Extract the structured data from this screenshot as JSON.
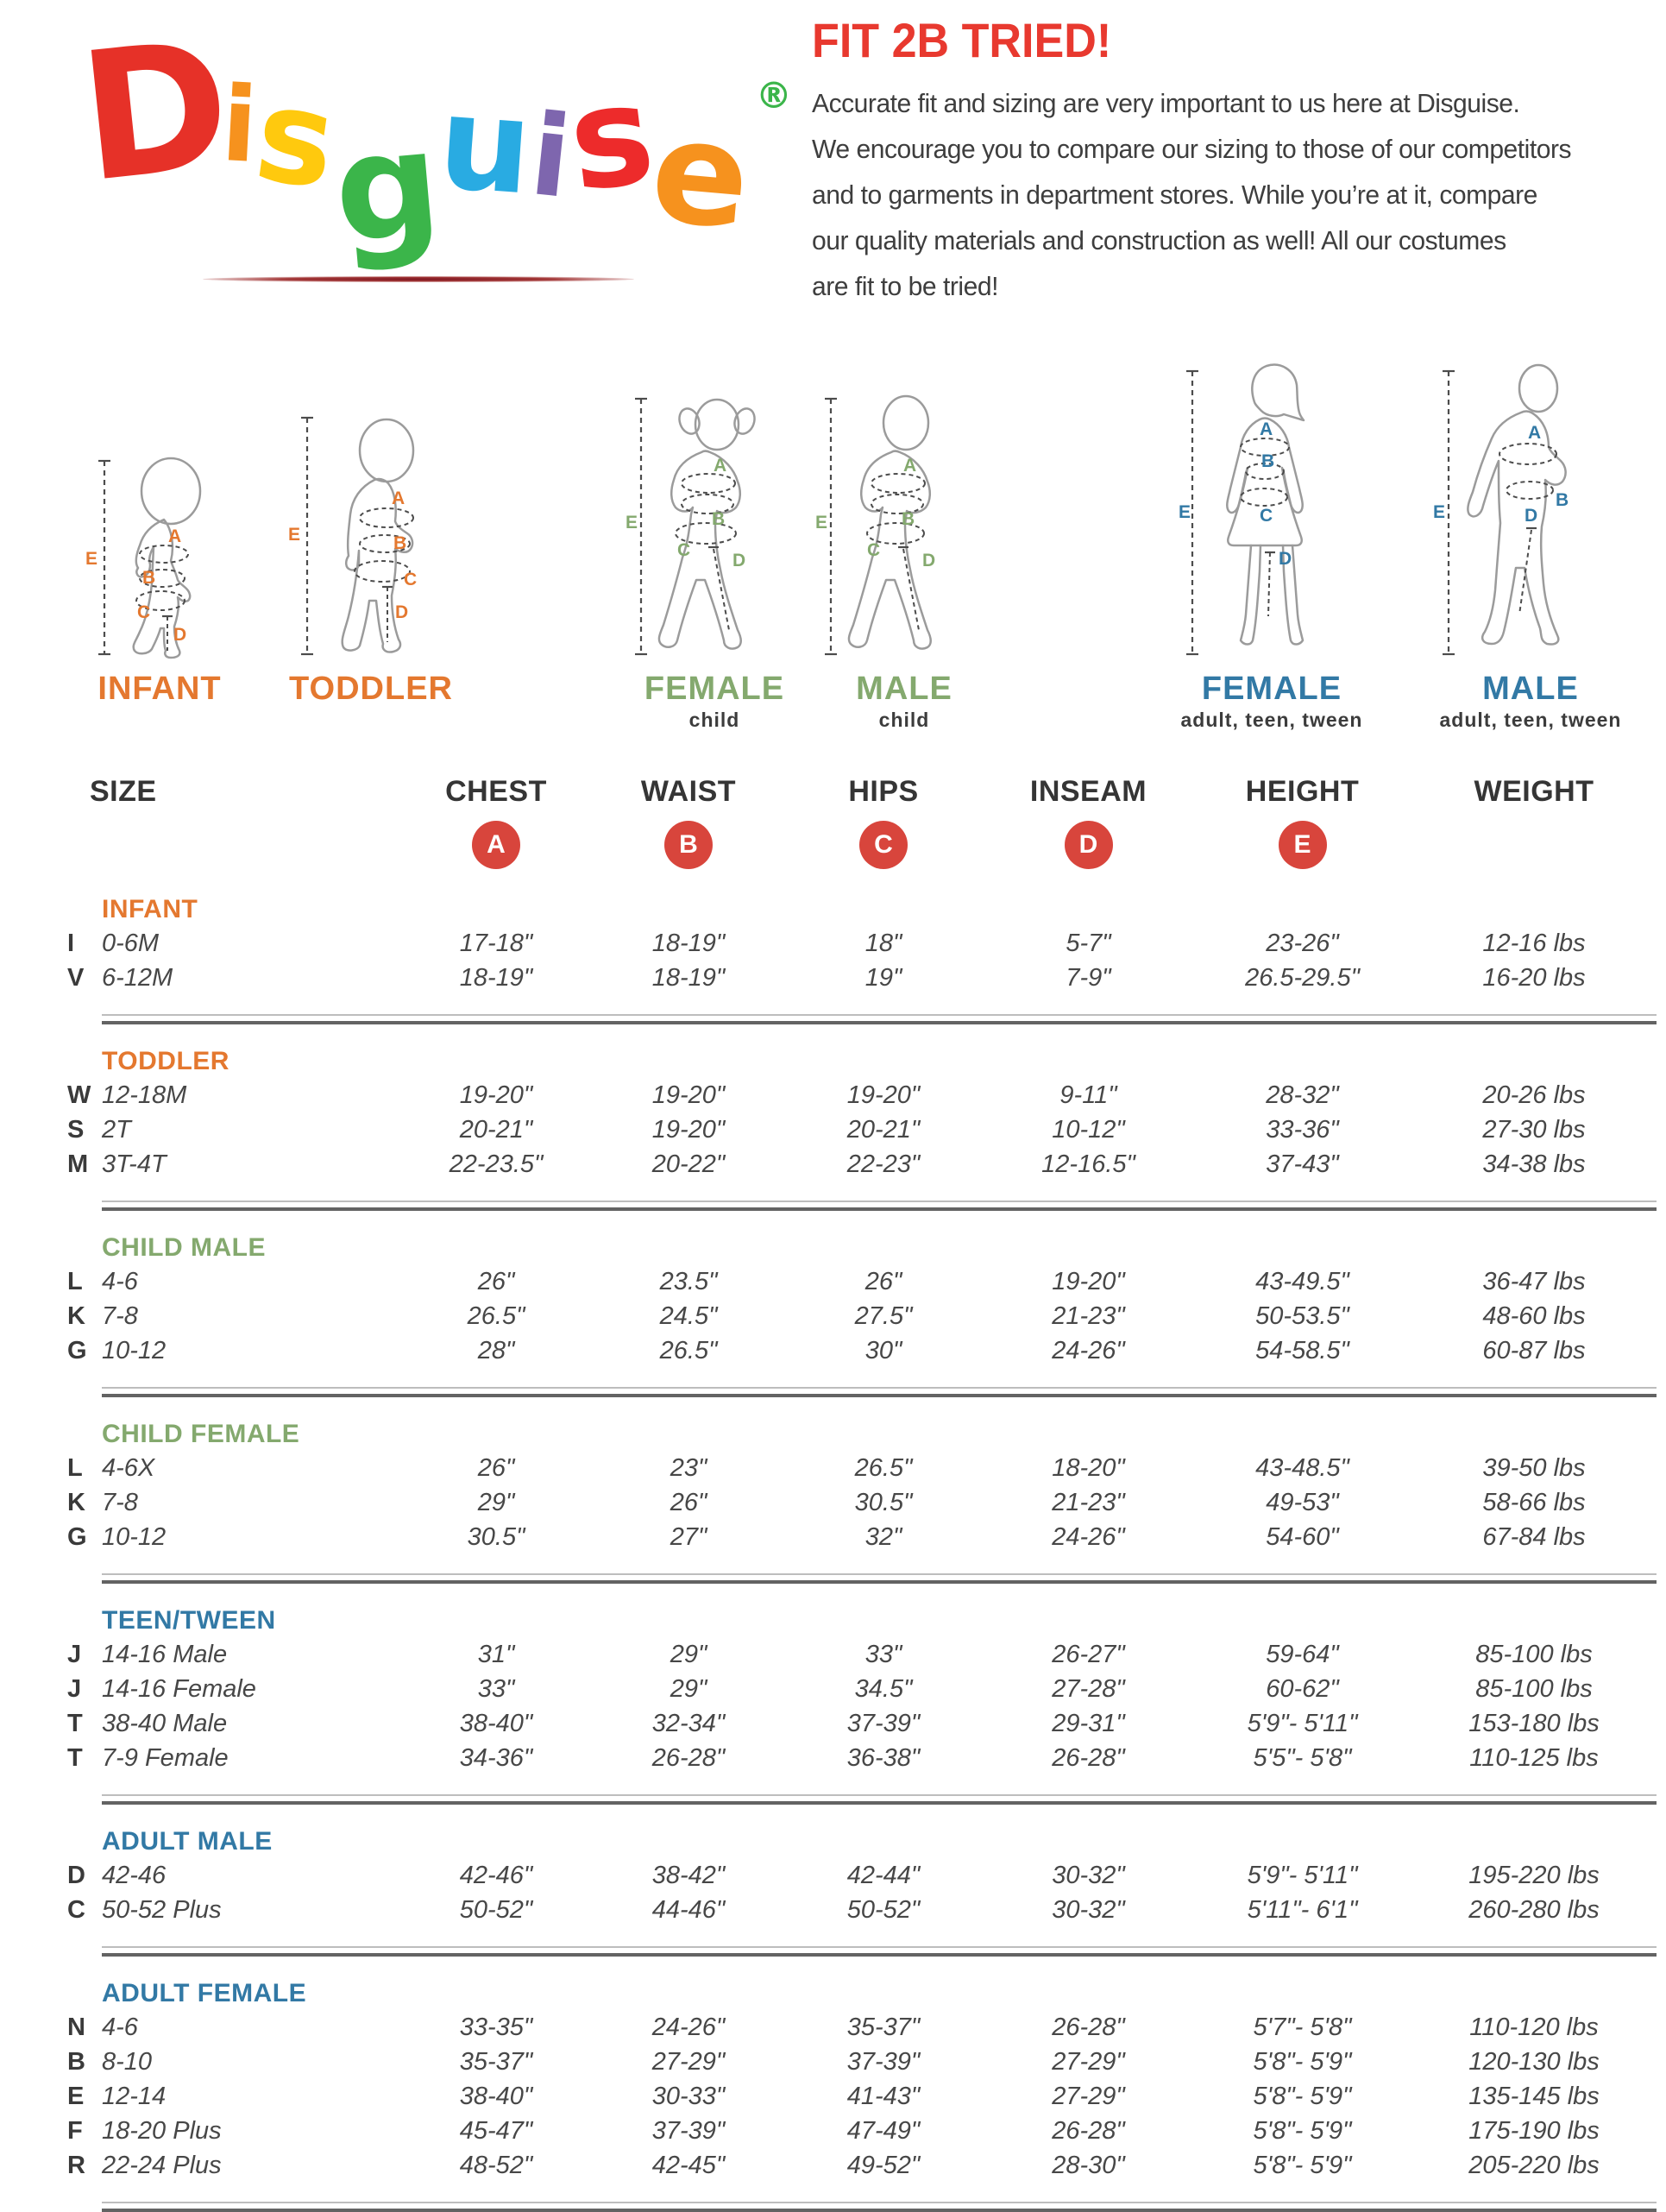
{
  "theme": {
    "red": "#E8392F",
    "badge": "#D8453C",
    "orange": "#E4782F",
    "green": "#84A96E",
    "blue": "#3279A5"
  },
  "logo": {
    "letters": [
      {
        "ch": "D",
        "color": "#E63128"
      },
      {
        "ch": "i",
        "color": "#F6921E"
      },
      {
        "ch": "s",
        "color": "#FFC90E"
      },
      {
        "ch": "g",
        "color": "#3BB54A"
      },
      {
        "ch": "u",
        "color": "#29ABE2"
      },
      {
        "ch": "i",
        "color": "#7E66AE"
      },
      {
        "ch": "s",
        "color": "#ED2B2B"
      },
      {
        "ch": "e",
        "color": "#F6921E"
      }
    ],
    "registered": "®",
    "registered_color": "#3BB54A"
  },
  "intro": {
    "heading": "FIT 2B TRIED!",
    "lines": [
      "Accurate fit and sizing are very important to us here at Disguise.",
      "We encourage you to compare our sizing to those of our competitors",
      "and to garments in department stores. While you’re at it, compare",
      "our quality materials and construction as well! All our costumes",
      "are fit to be tried!"
    ]
  },
  "measure_letters": {
    "A": "A",
    "B": "B",
    "C": "C",
    "D": "D",
    "E": "E"
  },
  "figures": [
    {
      "id": "infant",
      "label": "INFANT",
      "sublabel": "",
      "accent": "orange"
    },
    {
      "id": "toddler",
      "label": "TODDLER",
      "sublabel": "",
      "accent": "orange"
    },
    {
      "id": "female-child",
      "label": "FEMALE",
      "sublabel": "child",
      "accent": "green"
    },
    {
      "id": "male-child",
      "label": "MALE",
      "sublabel": "child",
      "accent": "green"
    },
    {
      "id": "female-adult",
      "label": "FEMALE",
      "sublabel": "adult, teen, tween",
      "accent": "blue"
    },
    {
      "id": "male-adult",
      "label": "MALE",
      "sublabel": "adult, teen, tween",
      "accent": "blue"
    }
  ],
  "table": {
    "columns": [
      "SIZE",
      "CHEST",
      "WAIST",
      "HIPS",
      "INSEAM",
      "HEIGHT",
      "WEIGHT"
    ],
    "badges": [
      "A",
      "B",
      "C",
      "D",
      "E"
    ],
    "sections": [
      {
        "name": "INFANT",
        "accent": "orange",
        "rows": [
          {
            "letter": "I",
            "cells": [
              "0-6M",
              "17-18\"",
              "18-19\"",
              "18\"",
              "5-7\"",
              "23-26\"",
              "12-16 lbs"
            ]
          },
          {
            "letter": "V",
            "cells": [
              "6-12M",
              "18-19\"",
              "18-19\"",
              "19\"",
              "7-9\"",
              "26.5-29.5\"",
              "16-20 lbs"
            ]
          }
        ]
      },
      {
        "name": "TODDLER",
        "accent": "orange",
        "rows": [
          {
            "letter": "W",
            "cells": [
              "12-18M",
              "19-20\"",
              "19-20\"",
              "19-20\"",
              "9-11\"",
              "28-32\"",
              "20-26 lbs"
            ]
          },
          {
            "letter": "S",
            "cells": [
              "2T",
              "20-21\"",
              "19-20\"",
              "20-21\"",
              "10-12\"",
              "33-36\"",
              "27-30 lbs"
            ]
          },
          {
            "letter": "M",
            "cells": [
              "3T-4T",
              "22-23.5\"",
              "20-22\"",
              "22-23\"",
              "12-16.5\"",
              "37-43\"",
              "34-38 lbs"
            ]
          }
        ]
      },
      {
        "name": "CHILD MALE",
        "accent": "green",
        "rows": [
          {
            "letter": "L",
            "cells": [
              "4-6",
              "26\"",
              "23.5\"",
              "26\"",
              "19-20\"",
              "43-49.5\"",
              "36-47 lbs"
            ]
          },
          {
            "letter": "K",
            "cells": [
              "7-8",
              "26.5\"",
              "24.5\"",
              "27.5\"",
              "21-23\"",
              "50-53.5\"",
              "48-60 lbs"
            ]
          },
          {
            "letter": "G",
            "cells": [
              "10-12",
              "28\"",
              "26.5\"",
              "30\"",
              "24-26\"",
              "54-58.5\"",
              "60-87 lbs"
            ]
          }
        ]
      },
      {
        "name": "CHILD FEMALE",
        "accent": "green",
        "rows": [
          {
            "letter": "L",
            "cells": [
              "4-6X",
              "26\"",
              "23\"",
              "26.5\"",
              "18-20\"",
              "43-48.5\"",
              "39-50 lbs"
            ]
          },
          {
            "letter": "K",
            "cells": [
              "7-8",
              "29\"",
              "26\"",
              "30.5\"",
              "21-23\"",
              "49-53\"",
              "58-66 lbs"
            ]
          },
          {
            "letter": "G",
            "cells": [
              "10-12",
              "30.5\"",
              "27\"",
              "32\"",
              "24-26\"",
              "54-60\"",
              "67-84 lbs"
            ]
          }
        ]
      },
      {
        "name": "TEEN/TWEEN",
        "accent": "blue",
        "rows": [
          {
            "letter": "J",
            "cells": [
              "14-16 Male",
              "31\"",
              "29\"",
              "33\"",
              "26-27\"",
              "59-64\"",
              "85-100 lbs"
            ]
          },
          {
            "letter": "J",
            "cells": [
              "14-16 Female",
              "33\"",
              "29\"",
              "34.5\"",
              "27-28\"",
              "60-62\"",
              "85-100 lbs"
            ]
          },
          {
            "letter": "T",
            "cells": [
              "38-40 Male",
              "38-40\"",
              "32-34\"",
              "37-39\"",
              "29-31\"",
              "5'9\"- 5'11\"",
              "153-180 lbs"
            ]
          },
          {
            "letter": "T",
            "cells": [
              "7-9 Female",
              "34-36\"",
              "26-28\"",
              "36-38\"",
              "26-28\"",
              "5'5\"- 5'8\"",
              "110-125 lbs"
            ]
          }
        ]
      },
      {
        "name": "ADULT MALE",
        "accent": "blue",
        "rows": [
          {
            "letter": "D",
            "cells": [
              "42-46",
              "42-46\"",
              "38-42\"",
              "42-44\"",
              "30-32\"",
              "5'9\"- 5'11\"",
              "195-220 lbs"
            ]
          },
          {
            "letter": "C",
            "cells": [
              "50-52 Plus",
              "50-52\"",
              "44-46\"",
              "50-52\"",
              "30-32\"",
              "5'11\"- 6'1\"",
              "260-280 lbs"
            ]
          }
        ]
      },
      {
        "name": "ADULT FEMALE",
        "accent": "blue",
        "rows": [
          {
            "letter": "N",
            "cells": [
              "4-6",
              "33-35\"",
              "24-26\"",
              "35-37\"",
              "26-28\"",
              "5'7\"- 5'8\"",
              "110-120 lbs"
            ]
          },
          {
            "letter": "B",
            "cells": [
              "8-10",
              "35-37\"",
              "27-29\"",
              "37-39\"",
              "27-29\"",
              "5'8\"- 5'9\"",
              "120-130 lbs"
            ]
          },
          {
            "letter": "E",
            "cells": [
              "12-14",
              "38-40\"",
              "30-33\"",
              "41-43\"",
              "27-29\"",
              "5'8\"- 5'9\"",
              "135-145 lbs"
            ]
          },
          {
            "letter": "F",
            "cells": [
              "18-20 Plus",
              "45-47\"",
              "37-39\"",
              "47-49\"",
              "26-28\"",
              "5'8\"- 5'9\"",
              "175-190 lbs"
            ]
          },
          {
            "letter": "R",
            "cells": [
              "22-24 Plus",
              "48-52\"",
              "42-45\"",
              "49-52\"",
              "28-30\"",
              "5'8\"- 5'9\"",
              "205-220 lbs"
            ]
          }
        ]
      }
    ]
  }
}
